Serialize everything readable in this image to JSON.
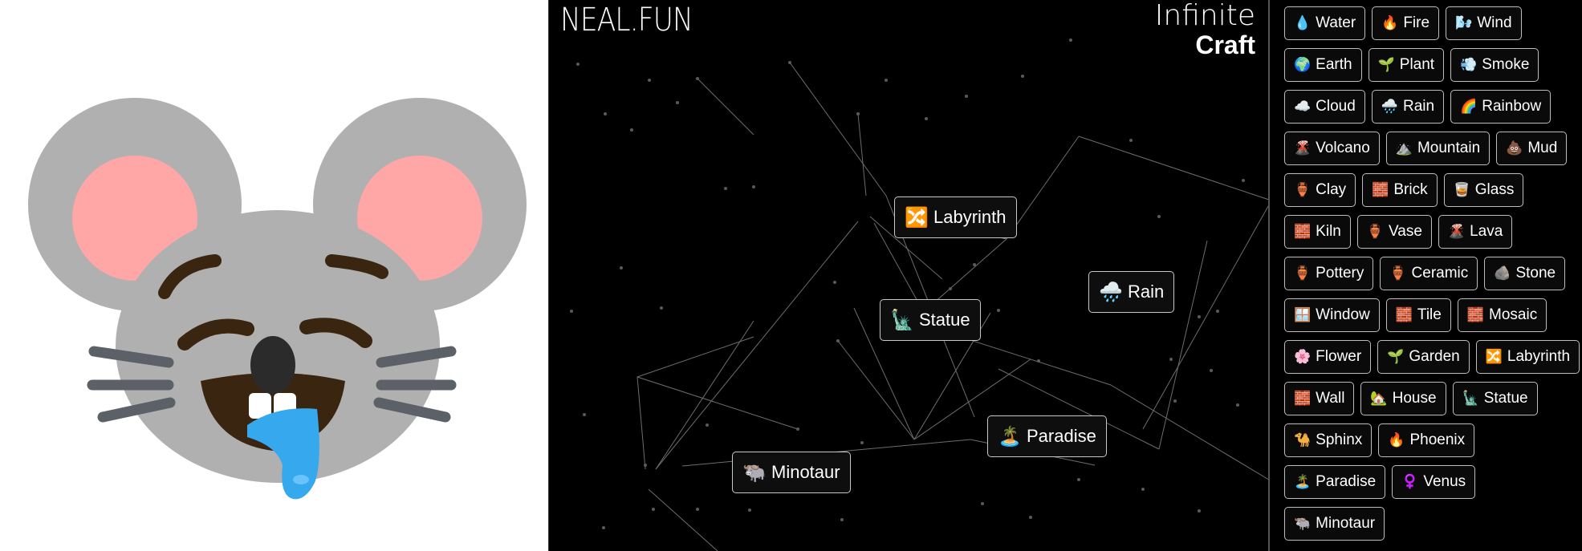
{
  "brand": {
    "neal": "NEAL.FUN",
    "infinite": "Infinite",
    "craft": "Craft"
  },
  "emoji_preview": {
    "description_icon": "drooling-mouse-face-icon"
  },
  "canvas_items": [
    {
      "name": "Labyrinth",
      "emoji": "🔀",
      "id": "labyrinth"
    },
    {
      "name": "Rain",
      "emoji": "🌧️",
      "id": "rain"
    },
    {
      "name": "Statue",
      "emoji": "🗽",
      "id": "statue"
    },
    {
      "name": "Paradise",
      "emoji": "🏝️",
      "id": "paradise"
    },
    {
      "name": "Minotaur",
      "emoji": "🐃",
      "id": "minotaur"
    }
  ],
  "sidebar_items": [
    {
      "name": "Water",
      "emoji": "💧"
    },
    {
      "name": "Fire",
      "emoji": "🔥"
    },
    {
      "name": "Wind",
      "emoji": "🌬️"
    },
    {
      "name": "Earth",
      "emoji": "🌍"
    },
    {
      "name": "Plant",
      "emoji": "🌱"
    },
    {
      "name": "Smoke",
      "emoji": "💨"
    },
    {
      "name": "Cloud",
      "emoji": "☁️"
    },
    {
      "name": "Rain",
      "emoji": "🌧️"
    },
    {
      "name": "Rainbow",
      "emoji": "🌈"
    },
    {
      "name": "Volcano",
      "emoji": "🌋"
    },
    {
      "name": "Mountain",
      "emoji": "⛰️"
    },
    {
      "name": "Mud",
      "emoji": "💩"
    },
    {
      "name": "Clay",
      "emoji": "🏺"
    },
    {
      "name": "Brick",
      "emoji": "🧱"
    },
    {
      "name": "Glass",
      "emoji": "🥃"
    },
    {
      "name": "Kiln",
      "emoji": "🧱"
    },
    {
      "name": "Vase",
      "emoji": "🏺"
    },
    {
      "name": "Lava",
      "emoji": "🌋"
    },
    {
      "name": "Pottery",
      "emoji": "🏺"
    },
    {
      "name": "Ceramic",
      "emoji": "🏺"
    },
    {
      "name": "Stone",
      "emoji": "🪨"
    },
    {
      "name": "Window",
      "emoji": "🪟"
    },
    {
      "name": "Tile",
      "emoji": "🧱"
    },
    {
      "name": "Mosaic",
      "emoji": "🧱"
    },
    {
      "name": "Flower",
      "emoji": "🌸"
    },
    {
      "name": "Garden",
      "emoji": "🌱"
    },
    {
      "name": "Labyrinth",
      "emoji": "🔀"
    },
    {
      "name": "Wall",
      "emoji": "🧱"
    },
    {
      "name": "House",
      "emoji": "🏡"
    },
    {
      "name": "Statue",
      "emoji": "🗽"
    },
    {
      "name": "Sphinx",
      "emoji": "🐪"
    },
    {
      "name": "Phoenix",
      "emoji": "🔥"
    },
    {
      "name": "Paradise",
      "emoji": "🏝️"
    },
    {
      "name": "Venus",
      "emoji": "♀️"
    },
    {
      "name": "Minotaur",
      "emoji": "🐃"
    }
  ],
  "colors": {
    "canvas_bg": "#000000",
    "node_border": "#c8c8c8",
    "mouse_gray": "#b0b0b0",
    "ear_pink": "#ffa6a6",
    "drool_blue": "#35a8ee"
  }
}
